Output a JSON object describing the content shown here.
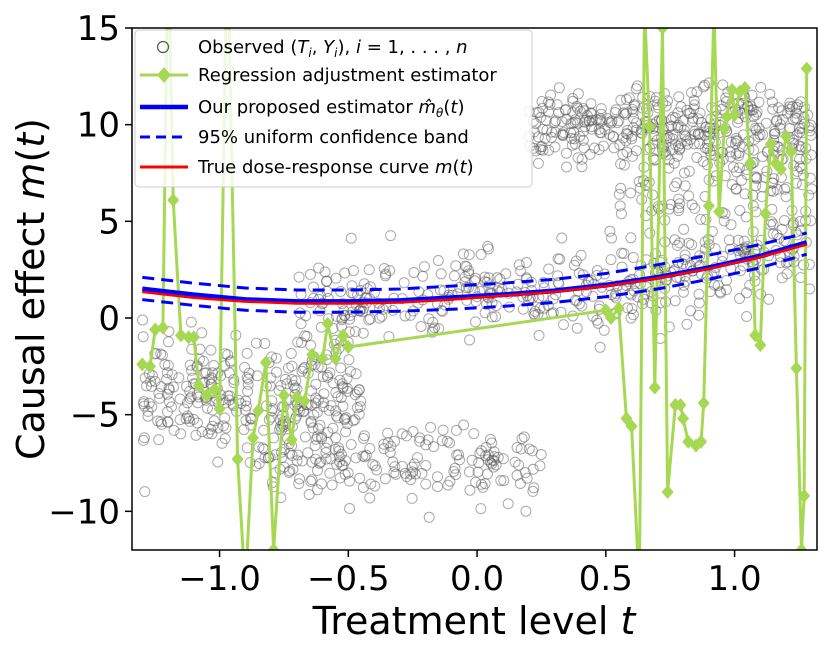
{
  "chart_data": {
    "type": "scatter",
    "title": "",
    "xlabel": "Treatment level t",
    "ylabel": "Causal effect m(t)",
    "xlim": [
      -1.34,
      1.32
    ],
    "ylim": [
      -12,
      15
    ],
    "xticks": [
      -1.0,
      -0.5,
      0.0,
      0.5,
      1.0
    ],
    "xtick_labels": [
      "−1.0",
      "−0.5",
      "0.0",
      "0.5",
      "1.0"
    ],
    "yticks": [
      -10,
      -5,
      0,
      5,
      10,
      15
    ],
    "ytick_labels": [
      "−10",
      "−5",
      "0",
      "5",
      "10",
      "15"
    ],
    "grid": false,
    "legend_position": "top-left",
    "legend": [
      "Observed (T_i, Y_i), i = 1, ..., n",
      "Regression adjustment estimator",
      "Our proposed estimator m̂_θ(t)",
      "95% uniform confidence band",
      "True dose-response curve m(t)"
    ],
    "colors": {
      "observed": "#555555",
      "regression": "#a6d854",
      "estimator": "#0000ff",
      "band": "#0000ff",
      "true_curve": "#ff0000"
    },
    "series": [
      {
        "name": "Observed (T_i, Y_i), i = 1, ..., n",
        "kind": "scatter",
        "clusters": [
          {
            "note": "lower-left band",
            "x": [
              -1.3,
              -0.45
            ],
            "y_center": -4.0,
            "y_spread": 2.6,
            "count": 300
          },
          {
            "note": "lower-middle band",
            "x": [
              -0.85,
              0.25
            ],
            "y_center": -7.6,
            "y_spread": 1.7,
            "count": 180
          },
          {
            "note": "along the curve",
            "x": [
              -0.7,
              1.3
            ],
            "y_center_curve": true,
            "y_spread": 2.0,
            "count": 420
          },
          {
            "note": "upper band",
            "x": [
              0.2,
              1.3
            ],
            "y_center": 9.8,
            "y_spread": 1.8,
            "count": 380
          },
          {
            "note": "upper-right extension",
            "x": [
              0.55,
              1.3
            ],
            "y_center": 6.5,
            "y_spread": 2.5,
            "count": 120
          }
        ]
      },
      {
        "name": "Regression adjustment estimator",
        "kind": "line-marker",
        "x": [
          -1.3,
          -1.27,
          -1.25,
          -1.22,
          -1.2,
          -1.18,
          -1.15,
          -1.12,
          -1.1,
          -1.08,
          -1.05,
          -1.02,
          -1.0,
          -0.97,
          -0.93,
          -0.9,
          -0.87,
          -0.85,
          -0.82,
          -0.79,
          -0.75,
          -0.72,
          -0.7,
          -0.67,
          -0.64,
          -0.6,
          -0.58,
          -0.55,
          -0.52,
          -0.5,
          0.5,
          0.52,
          0.55,
          0.58,
          0.6,
          0.63,
          0.65,
          0.67,
          0.69,
          0.72,
          0.74,
          0.77,
          0.79,
          0.8,
          0.82,
          0.85,
          0.87,
          0.88,
          0.9,
          0.92,
          0.94,
          0.96,
          0.97,
          0.99,
          1.0,
          1.02,
          1.04,
          1.06,
          1.08,
          1.1,
          1.12,
          1.14,
          1.16,
          1.18,
          1.2,
          1.22,
          1.24,
          1.26,
          1.27,
          1.28
        ],
        "y": [
          -2.4,
          -2.5,
          -0.6,
          -0.5,
          20,
          6.1,
          -0.9,
          -1.0,
          -1.0,
          -3.5,
          -4.0,
          -3.7,
          -4.7,
          20,
          -7.3,
          -14,
          -6.2,
          -4.8,
          -2.3,
          -12,
          -4.0,
          -6.3,
          -4.1,
          -4.3,
          -1.9,
          -2.1,
          -0.3,
          -2.1,
          -0.9,
          -1.5,
          0.4,
          0.0,
          0.5,
          -5.2,
          -5.6,
          -14,
          16,
          9.9,
          -3.6,
          15,
          -9.0,
          -4.5,
          -4.5,
          -5.2,
          -6.4,
          -6.6,
          -6.4,
          -4.4,
          5.8,
          16,
          5.5,
          9.8,
          10.4,
          11.8,
          10.5,
          11.7,
          11.9,
          8.0,
          -0.9,
          -1.4,
          5.4,
          9.0,
          8.0,
          7.7,
          9.4,
          8.6,
          -2.6,
          -12,
          -9.2,
          12.9
        ]
      },
      {
        "name": "Our proposed estimator m̂_θ(t)",
        "kind": "line",
        "x": [
          -1.3,
          -1.1,
          -0.9,
          -0.7,
          -0.5,
          -0.3,
          -0.1,
          0.1,
          0.3,
          0.5,
          0.7,
          0.9,
          1.1,
          1.28
        ],
        "y": [
          1.5,
          1.2,
          0.95,
          0.85,
          0.85,
          0.9,
          1.05,
          1.2,
          1.4,
          1.7,
          2.1,
          2.6,
          3.2,
          3.9
        ]
      },
      {
        "name": "95% uniform confidence band (upper)",
        "kind": "dashed",
        "x": [
          -1.3,
          -1.1,
          -0.9,
          -0.7,
          -0.5,
          -0.3,
          -0.1,
          0.1,
          0.3,
          0.5,
          0.7,
          0.9,
          1.1,
          1.28
        ],
        "y": [
          2.1,
          1.8,
          1.55,
          1.45,
          1.45,
          1.5,
          1.65,
          1.8,
          2.0,
          2.3,
          2.75,
          3.25,
          3.8,
          4.4
        ]
      },
      {
        "name": "95% uniform confidence band (lower)",
        "kind": "dashed",
        "x": [
          -1.3,
          -1.1,
          -0.9,
          -0.7,
          -0.5,
          -0.3,
          -0.1,
          0.1,
          0.3,
          0.5,
          0.7,
          0.9,
          1.1,
          1.28
        ],
        "y": [
          0.95,
          0.65,
          0.4,
          0.3,
          0.3,
          0.35,
          0.45,
          0.6,
          0.8,
          1.1,
          1.5,
          2.0,
          2.6,
          3.3
        ]
      },
      {
        "name": "True dose-response curve m(t)",
        "kind": "line",
        "x": [
          -1.3,
          -1.1,
          -0.9,
          -0.7,
          -0.5,
          -0.3,
          -0.1,
          0.1,
          0.3,
          0.5,
          0.7,
          0.9,
          1.1,
          1.28
        ],
        "y": [
          1.35,
          1.05,
          0.85,
          0.75,
          0.75,
          0.8,
          0.95,
          1.15,
          1.35,
          1.65,
          2.05,
          2.55,
          3.15,
          3.8
        ]
      }
    ]
  }
}
